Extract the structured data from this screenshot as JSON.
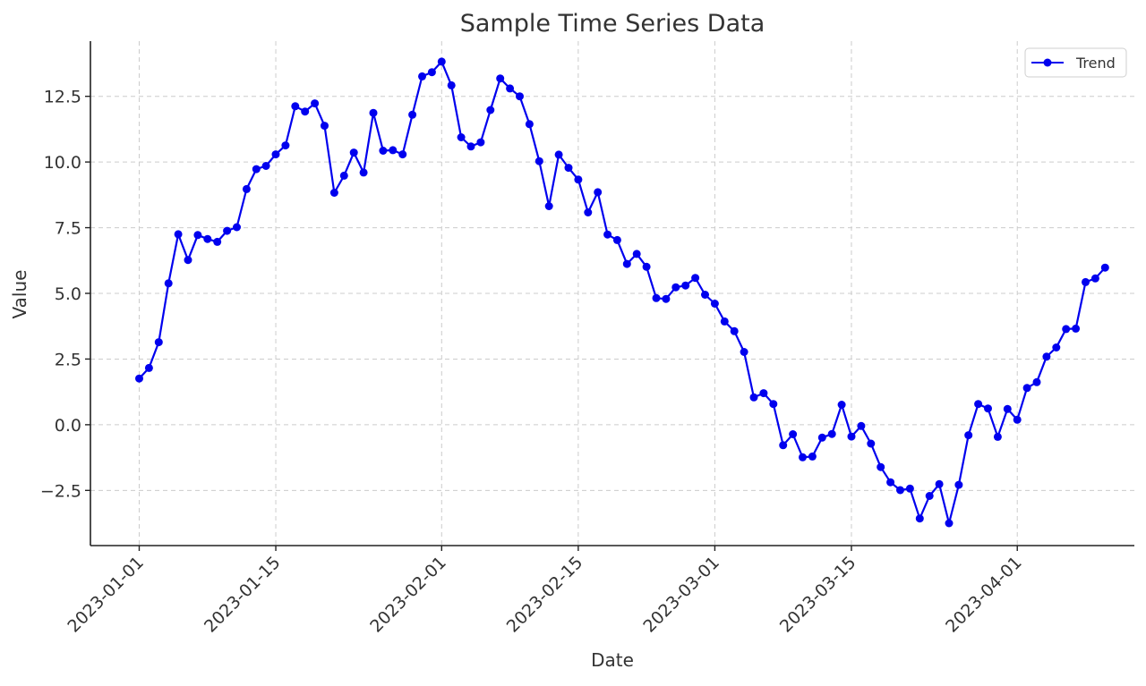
{
  "chart_data": {
    "type": "line",
    "title": "Sample Time Series Data",
    "xlabel": "Date",
    "ylabel": "Value",
    "x_tick_labels": [
      "2023-01-01",
      "2023-01-15",
      "2023-02-01",
      "2023-02-15",
      "2023-03-01",
      "2023-03-15",
      "2023-04-01"
    ],
    "y_tick_labels": [
      "−2.5",
      "0.0",
      "2.5",
      "5.0",
      "7.5",
      "10.0",
      "12.5"
    ],
    "y_ticks": [
      -2.5,
      0,
      2.5,
      5,
      7.5,
      10,
      12.5
    ],
    "xlim": [
      "2022-12-27",
      "2023-04-13"
    ],
    "ylim": [
      -4.6,
      14.6
    ],
    "grid": true,
    "legend_position": "top-right",
    "series": [
      {
        "name": "Trend",
        "color": "#0000ee",
        "marker": "circle",
        "x": [
          "2023-01-01",
          "2023-01-02",
          "2023-01-03",
          "2023-01-04",
          "2023-01-05",
          "2023-01-06",
          "2023-01-07",
          "2023-01-08",
          "2023-01-09",
          "2023-01-10",
          "2023-01-11",
          "2023-01-12",
          "2023-01-13",
          "2023-01-14",
          "2023-01-15",
          "2023-01-16",
          "2023-01-17",
          "2023-01-18",
          "2023-01-19",
          "2023-01-20",
          "2023-01-21",
          "2023-01-22",
          "2023-01-23",
          "2023-01-24",
          "2023-01-25",
          "2023-01-26",
          "2023-01-27",
          "2023-01-28",
          "2023-01-29",
          "2023-01-30",
          "2023-01-31",
          "2023-02-01",
          "2023-02-02",
          "2023-02-03",
          "2023-02-04",
          "2023-02-05",
          "2023-02-06",
          "2023-02-07",
          "2023-02-08",
          "2023-02-09",
          "2023-02-10",
          "2023-02-11",
          "2023-02-12",
          "2023-02-13",
          "2023-02-14",
          "2023-02-15",
          "2023-02-16",
          "2023-02-17",
          "2023-02-18",
          "2023-02-19",
          "2023-02-20",
          "2023-02-21",
          "2023-02-22",
          "2023-02-23",
          "2023-02-24",
          "2023-02-25",
          "2023-02-26",
          "2023-02-27",
          "2023-02-28",
          "2023-03-01",
          "2023-03-02",
          "2023-03-03",
          "2023-03-04",
          "2023-03-05",
          "2023-03-06",
          "2023-03-07",
          "2023-03-08",
          "2023-03-09",
          "2023-03-10",
          "2023-03-11",
          "2023-03-12",
          "2023-03-13",
          "2023-03-14",
          "2023-03-15",
          "2023-03-16",
          "2023-03-17",
          "2023-03-18",
          "2023-03-19",
          "2023-03-20",
          "2023-03-21",
          "2023-03-22",
          "2023-03-23",
          "2023-03-24",
          "2023-03-25",
          "2023-03-26",
          "2023-03-27",
          "2023-03-28",
          "2023-03-29",
          "2023-03-30",
          "2023-03-31",
          "2023-04-01",
          "2023-04-02",
          "2023-04-03",
          "2023-04-04",
          "2023-04-05",
          "2023-04-06",
          "2023-04-07",
          "2023-04-08",
          "2023-04-09",
          "2023-04-10"
        ],
        "y": [
          1.76,
          2.16,
          3.14,
          5.38,
          7.25,
          6.27,
          7.22,
          7.07,
          6.96,
          7.38,
          7.52,
          8.97,
          9.73,
          9.85,
          10.29,
          10.63,
          12.12,
          11.92,
          12.23,
          11.38,
          8.83,
          9.48,
          10.36,
          9.6,
          11.87,
          10.43,
          10.45,
          10.29,
          11.8,
          13.26,
          13.42,
          13.82,
          12.92,
          10.94,
          10.59,
          10.75,
          11.98,
          13.18,
          12.8,
          12.5,
          11.44,
          10.03,
          8.32,
          10.28,
          9.78,
          9.33,
          8.08,
          8.85,
          7.24,
          7.03,
          6.12,
          6.5,
          6.01,
          4.82,
          4.79,
          5.23,
          5.3,
          5.59,
          4.95,
          4.61,
          3.93,
          3.56,
          2.77,
          1.04,
          1.2,
          0.79,
          -0.78,
          -0.36,
          -1.24,
          -1.21,
          -0.49,
          -0.35,
          0.76,
          -0.45,
          -0.05,
          -0.72,
          -1.61,
          -2.19,
          -2.49,
          -2.43,
          -3.57,
          -2.71,
          -2.26,
          -3.75,
          -2.29,
          -0.4,
          0.79,
          0.62,
          -0.46,
          0.6,
          0.19,
          1.4,
          1.62,
          2.59,
          2.94,
          3.64,
          3.66,
          5.43,
          5.57,
          5.98
        ]
      }
    ]
  }
}
